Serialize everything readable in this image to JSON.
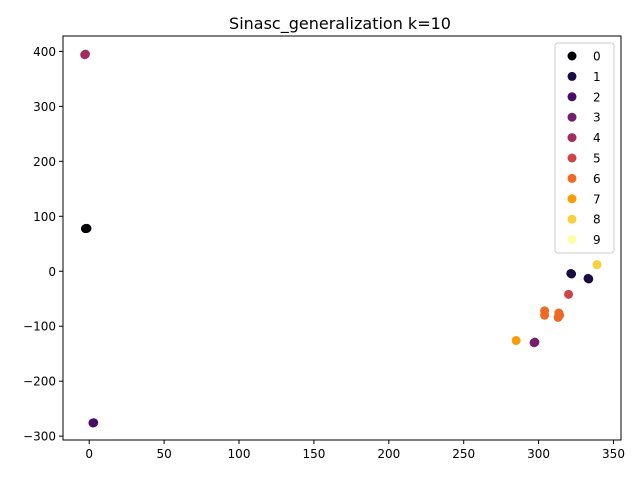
{
  "chart_data": {
    "type": "scatter",
    "title": "Sinasc_generalization k=10",
    "xlabel": "",
    "ylabel": "",
    "xlim": [
      -17.5,
      355
    ],
    "ylim": [
      -307,
      428
    ],
    "x_ticks": [
      0,
      50,
      100,
      150,
      200,
      250,
      300,
      350
    ],
    "y_ticks": [
      -300,
      -200,
      -100,
      0,
      100,
      200,
      300,
      400
    ],
    "grid": false,
    "legend": {
      "placement": "top-right",
      "title": ""
    },
    "series": [
      {
        "name": "0",
        "color": "#000004",
        "points": [
          [
            -2,
            78
          ],
          [
            -1.5,
            78
          ],
          [
            -2.5,
            77.5
          ]
        ]
      },
      {
        "name": "1",
        "color": "#1b0c41",
        "points": [
          [
            322,
            -5
          ],
          [
            321.5,
            -4
          ],
          [
            333.5,
            -14
          ],
          [
            333,
            -13
          ]
        ]
      },
      {
        "name": "2",
        "color": "#4a0c6b",
        "points": [
          [
            2.5,
            -276
          ],
          [
            3,
            -275.5
          ]
        ]
      },
      {
        "name": "3",
        "color": "#781c6d",
        "points": [
          [
            297,
            -130
          ],
          [
            297.5,
            -129
          ]
        ]
      },
      {
        "name": "4",
        "color": "#a52c60",
        "points": [
          [
            -3,
            394
          ],
          [
            -2.5,
            395
          ]
        ]
      },
      {
        "name": "5",
        "color": "#cf4446",
        "points": [
          [
            320,
            -42
          ]
        ]
      },
      {
        "name": "6",
        "color": "#ed6925",
        "points": [
          [
            304,
            -72
          ],
          [
            304,
            -80
          ],
          [
            313.5,
            -76
          ],
          [
            313,
            -84
          ],
          [
            314,
            -80
          ]
        ]
      },
      {
        "name": "7",
        "color": "#fb9b06",
        "points": [
          [
            285,
            -126
          ]
        ]
      },
      {
        "name": "8",
        "color": "#f7d13d",
        "points": [
          [
            339,
            12
          ]
        ]
      },
      {
        "name": "9",
        "color": "#fcffa4",
        "points": []
      }
    ]
  }
}
